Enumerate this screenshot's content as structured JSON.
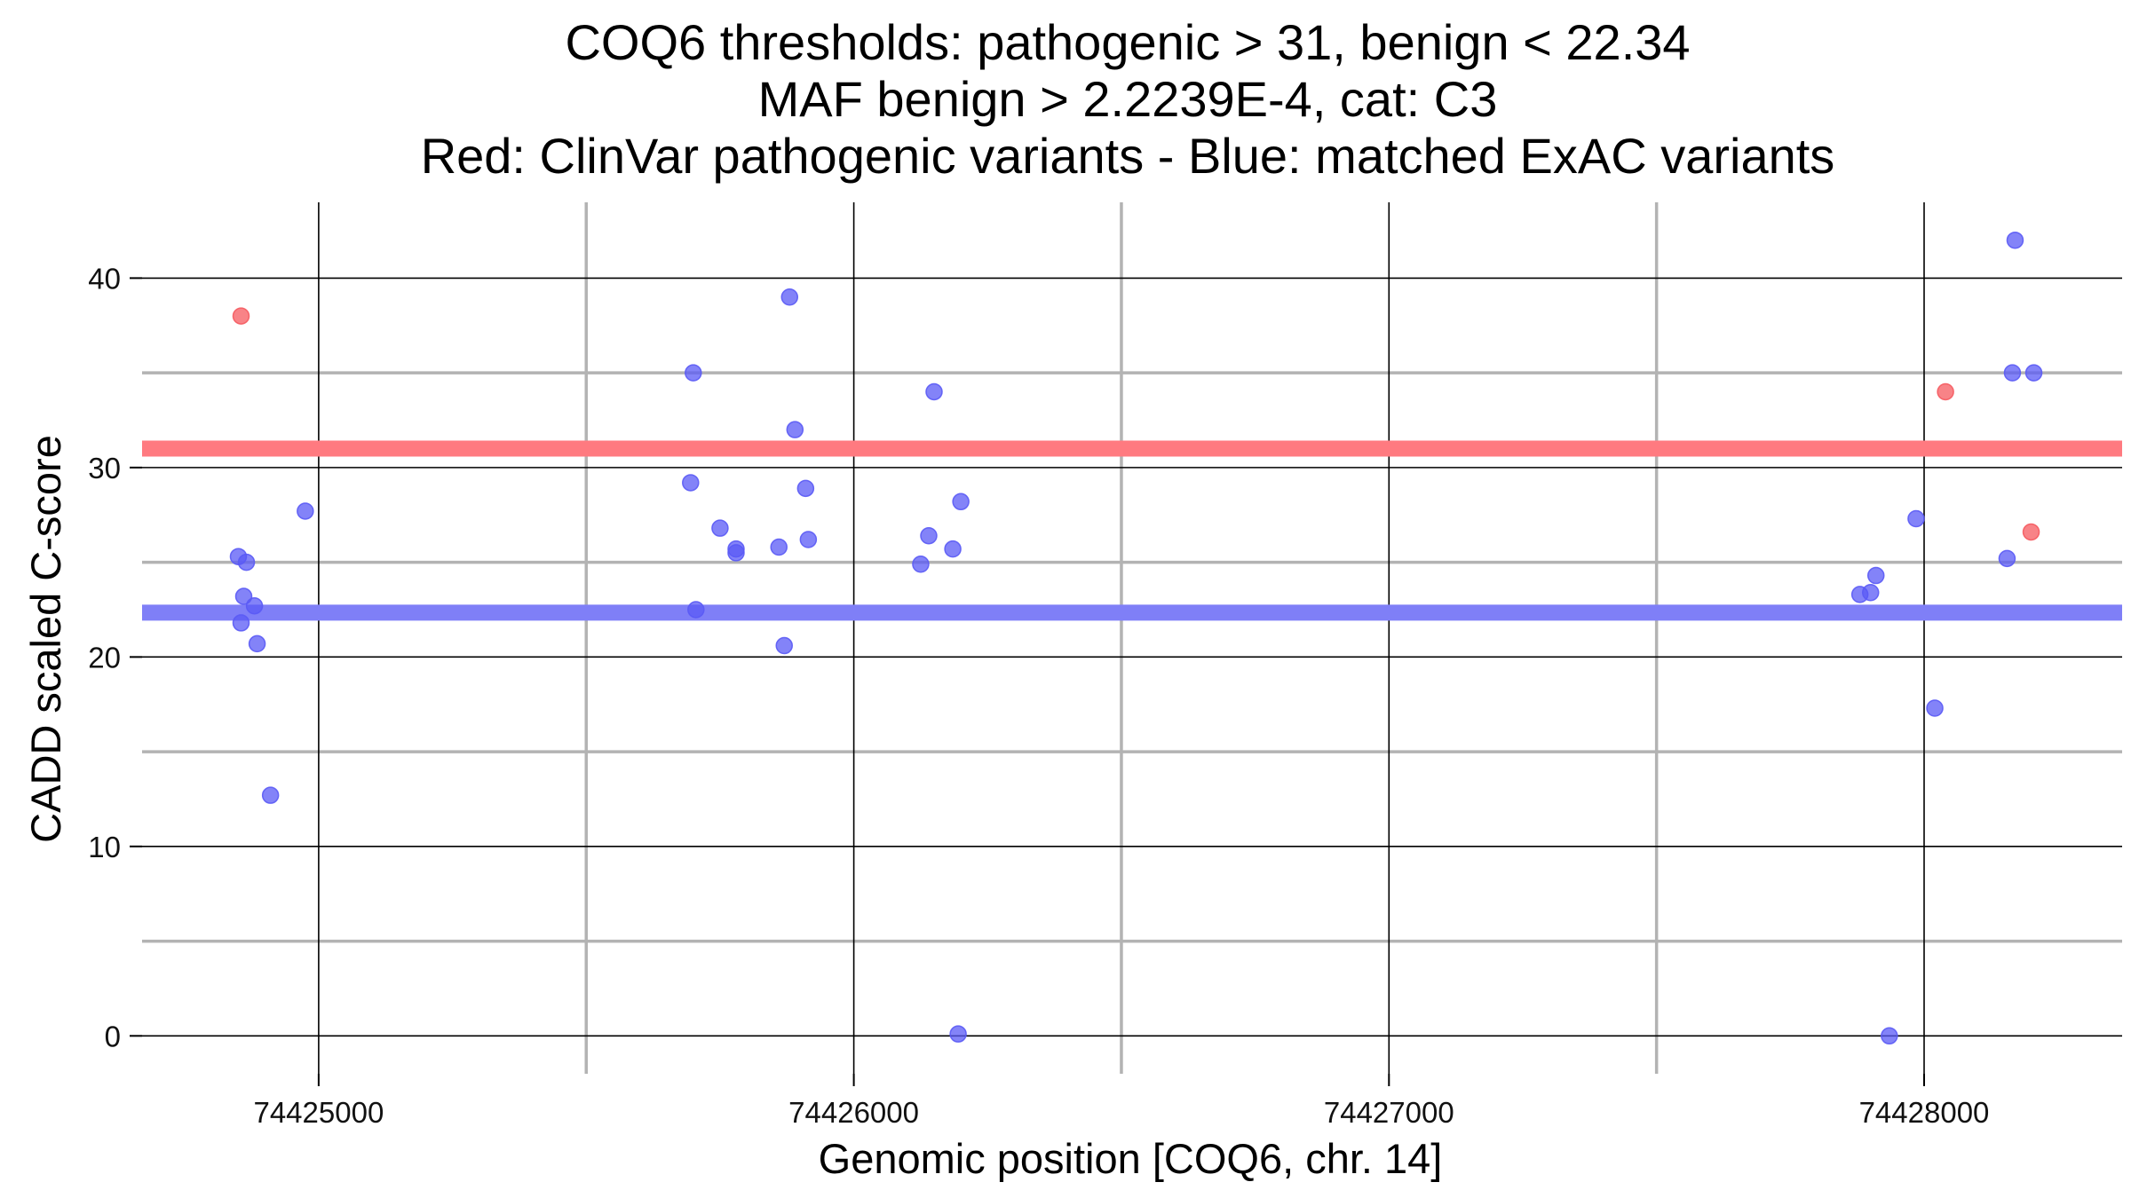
{
  "chart_data": {
    "type": "scatter",
    "title_lines": [
      "COQ6 thresholds: pathogenic > 31, benign < 22.34",
      "MAF benign > 2.2239E-4, cat: C3",
      "Red: ClinVar pathogenic variants - Blue: matched ExAC variants"
    ],
    "xlabel": "Genomic position [COQ6, chr. 14]",
    "ylabel": "CADD scaled C-score",
    "xlim": [
      74424670,
      74428370
    ],
    "ylim": [
      -2,
      44
    ],
    "x_ticks": [
      74425000,
      74426000,
      74427000,
      74428000
    ],
    "x_tick_labels": [
      "74425000",
      "74426000",
      "74427000",
      "74428000"
    ],
    "x_minor_grid": [
      74425500,
      74426500,
      74427500
    ],
    "y_ticks": [
      0,
      10,
      20,
      30,
      40
    ],
    "y_tick_labels": [
      "0",
      "10",
      "20",
      "30",
      "40"
    ],
    "y_minor_grid": [
      5,
      15,
      25,
      35
    ],
    "grid": true,
    "thresholds": [
      {
        "name": "pathogenic",
        "value": 31,
        "color": "#ff7a80"
      },
      {
        "name": "benign",
        "value": 22.34,
        "color": "#7f7ff7"
      }
    ],
    "series": [
      {
        "name": "ClinVar pathogenic variants",
        "color": "#f55a5f",
        "points": [
          [
            74424855,
            38.0
          ],
          [
            74428040,
            34.0
          ],
          [
            74428200,
            26.6
          ]
        ]
      },
      {
        "name": "matched ExAC variants",
        "color": "#5a5af5",
        "points": [
          [
            74424850,
            25.3
          ],
          [
            74424865,
            25.0
          ],
          [
            74424860,
            23.2
          ],
          [
            74424880,
            22.7
          ],
          [
            74424855,
            21.8
          ],
          [
            74424885,
            20.7
          ],
          [
            74424910,
            12.7
          ],
          [
            74424975,
            27.7
          ],
          [
            74425700,
            35.0
          ],
          [
            74425695,
            29.2
          ],
          [
            74425705,
            22.5
          ],
          [
            74425750,
            26.8
          ],
          [
            74425780,
            25.7
          ],
          [
            74425780,
            25.5
          ],
          [
            74425860,
            25.8
          ],
          [
            74425880,
            39.0
          ],
          [
            74425890,
            32.0
          ],
          [
            74425910,
            28.9
          ],
          [
            74425915,
            26.2
          ],
          [
            74425870,
            20.6
          ],
          [
            74426150,
            34.0
          ],
          [
            74426140,
            26.4
          ],
          [
            74426125,
            24.9
          ],
          [
            74426185,
            25.7
          ],
          [
            74426200,
            28.2
          ],
          [
            74426195,
            0.1
          ],
          [
            74427880,
            23.3
          ],
          [
            74427900,
            23.4
          ],
          [
            74427910,
            24.3
          ],
          [
            74427985,
            27.3
          ],
          [
            74428020,
            17.3
          ],
          [
            74427935,
            0.0
          ],
          [
            74428170,
            42.0
          ],
          [
            74428165,
            35.0
          ],
          [
            74428205,
            35.0
          ],
          [
            74428155,
            25.2
          ]
        ]
      }
    ]
  }
}
